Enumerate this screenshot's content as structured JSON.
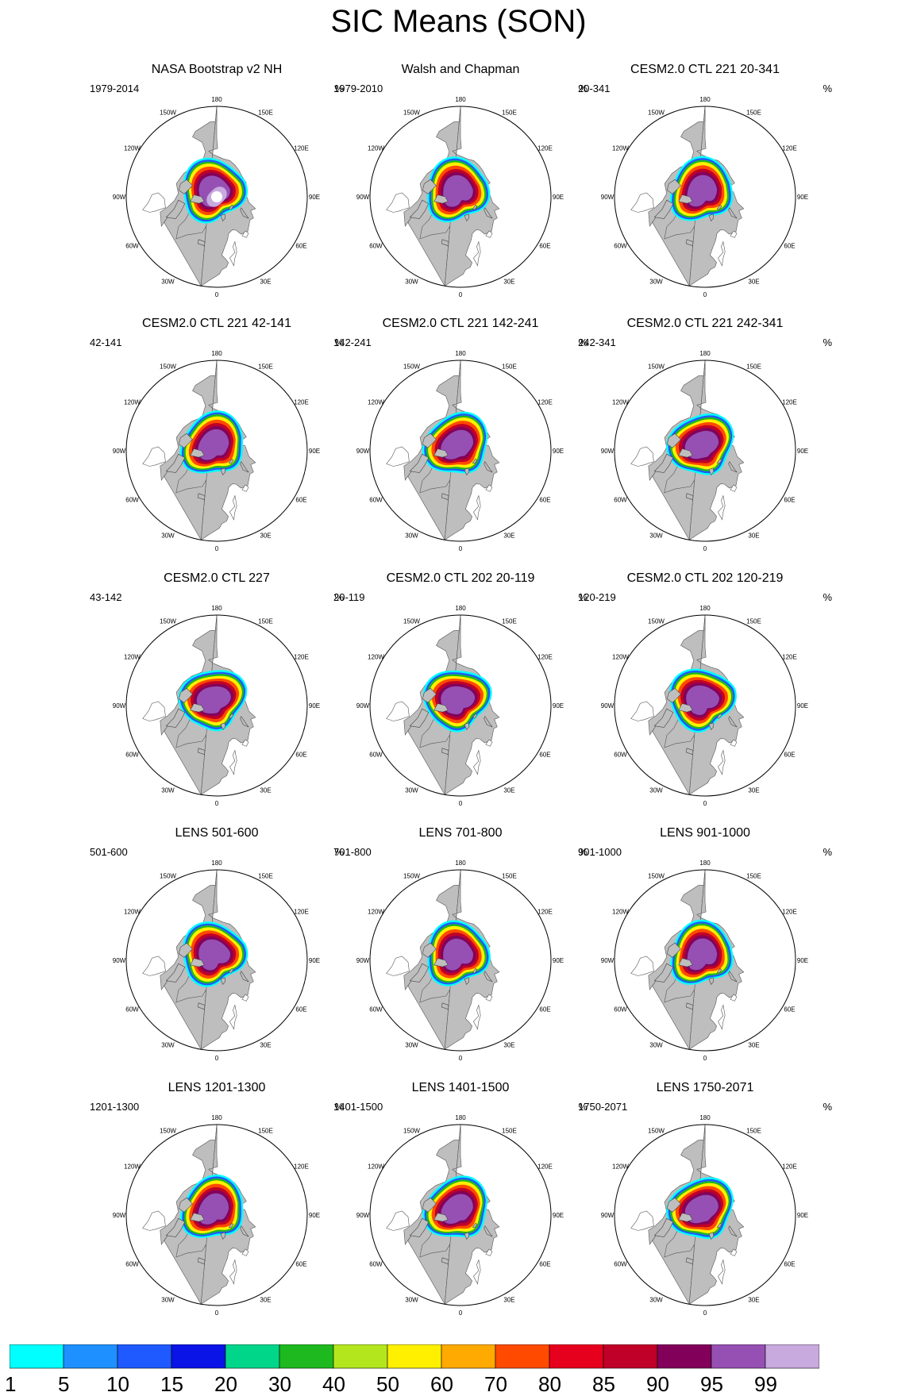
{
  "title": "SIC Means (SON)",
  "units": "%",
  "panels": [
    {
      "title": "NASA Bootstrap v2 NH",
      "period": "1979-2014",
      "units": "%"
    },
    {
      "title": "Walsh and Chapman",
      "period": "1979-2010",
      "units": "%"
    },
    {
      "title": "CESM2.0 CTL 221 20-341",
      "period": "20-341",
      "units": "%"
    },
    {
      "title": "CESM2.0 CTL 221 42-141",
      "period": "42-141",
      "units": "%"
    },
    {
      "title": "CESM2.0 CTL 221 142-241",
      "period": "142-241",
      "units": "%"
    },
    {
      "title": "CESM2.0 CTL 221 242-341",
      "period": "242-341",
      "units": "%"
    },
    {
      "title": "CESM2.0 CTL 227",
      "period": "43-142",
      "units": "%"
    },
    {
      "title": "CESM2.0 CTL 202 20-119",
      "period": "20-119",
      "units": "%"
    },
    {
      "title": "CESM2.0 CTL 202 120-219",
      "period": "120-219",
      "units": "%"
    },
    {
      "title": "LENS 501-600",
      "period": "501-600",
      "units": "%"
    },
    {
      "title": "LENS 701-800",
      "period": "701-800",
      "units": "%"
    },
    {
      "title": "LENS 901-1000",
      "period": "901-1000",
      "units": "%"
    },
    {
      "title": "LENS 1201-1300",
      "period": "1201-1300",
      "units": "%"
    },
    {
      "title": "LENS 1401-1500",
      "period": "1401-1500",
      "units": "%"
    },
    {
      "title": "LENS 1750-2071",
      "period": "1750-2071",
      "units": "%"
    }
  ],
  "map_labels": [
    "180",
    "150E",
    "120E",
    "90E",
    "60E",
    "30E",
    "0",
    "30W",
    "60W",
    "90W",
    "120W",
    "150W"
  ],
  "colorbar": {
    "labels": [
      "1",
      "5",
      "10",
      "15",
      "20",
      "30",
      "40",
      "50",
      "60",
      "70",
      "80",
      "85",
      "90",
      "95",
      "99"
    ],
    "colors": [
      "#00ffff",
      "#1e90ff",
      "#1e5aff",
      "#0a14e6",
      "#00d68a",
      "#1eb91e",
      "#b4e61e",
      "#fff000",
      "#ffaa00",
      "#ff4a00",
      "#e6001e",
      "#c00028",
      "#82005a",
      "#9650b4",
      "#c8aade"
    ]
  },
  "colors": {
    "land": "#bebebe",
    "ocean": "#ffffff"
  }
}
